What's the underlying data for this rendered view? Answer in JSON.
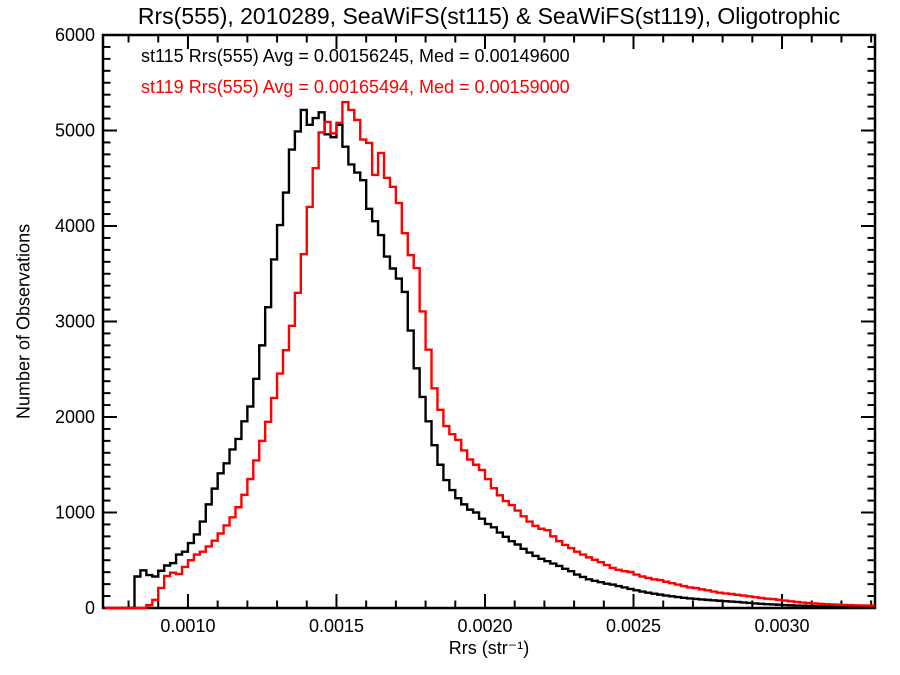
{
  "title": "Rrs(555), 2010289, SeaWiFS(st115) & SeaWiFS(st119), Oligotrophic",
  "colors": {
    "background": "#ffffff",
    "axis": "#000000",
    "st115": "#000000",
    "st119": "#ff0000"
  },
  "chart_data": {
    "type": "histogram",
    "title": "Rrs(555), 2010289, SeaWiFS(st115) & SeaWiFS(st119), Oligotrophic",
    "xlabel": "Rrs (str⁻¹)",
    "ylabel": "Number of Observations",
    "xlim": [
      0.000714,
      0.003313
    ],
    "ylim": [
      0,
      6000
    ],
    "grid": false,
    "legend_position": "top-left-inside",
    "x_major_ticks": [
      0.001,
      0.0015,
      0.002,
      0.0025,
      0.003
    ],
    "x_tick_labels": [
      "0.0010",
      "0.0015",
      "0.0020",
      "0.0025",
      "0.0030"
    ],
    "x_minor_step": 0.0001,
    "y_major_ticks": [
      0,
      1000,
      2000,
      3000,
      4000,
      5000,
      6000
    ],
    "y_tick_labels": [
      "0",
      "1000",
      "2000",
      "3000",
      "4000",
      "5000",
      "6000"
    ],
    "y_minor_step": 125,
    "bin_start": 0.00072,
    "bin_width": 2e-05,
    "series": [
      {
        "name": "st115",
        "sensor": "SeaWiFS",
        "color": "#000000",
        "avg": 0.00156245,
        "med": 0.001496,
        "stats_label": "st115 Rrs(555) Avg = 0.00156245, Med = 0.00149600",
        "counts": [
          0,
          0,
          0,
          0,
          0,
          330,
          395,
          345,
          330,
          390,
          445,
          470,
          560,
          590,
          680,
          770,
          905,
          1085,
          1250,
          1410,
          1515,
          1660,
          1770,
          1955,
          2110,
          2400,
          2750,
          3150,
          3650,
          4010,
          4350,
          4800,
          4990,
          5215,
          5060,
          5130,
          5190,
          4960,
          4930,
          5060,
          4830,
          4645,
          4560,
          4480,
          4180,
          4050,
          3905,
          3680,
          3555,
          3450,
          3310,
          2905,
          2510,
          2210,
          1955,
          1705,
          1500,
          1340,
          1235,
          1150,
          1085,
          1030,
          1000,
          935,
          880,
          845,
          790,
          745,
          700,
          665,
          620,
          580,
          545,
          515,
          490,
          465,
          440,
          410,
          385,
          350,
          325,
          300,
          285,
          270,
          255,
          245,
          230,
          215,
          200,
          185,
          172,
          160,
          150,
          140,
          130,
          122,
          114,
          107,
          100,
          95,
          90,
          85,
          80,
          76,
          71,
          67,
          63,
          58,
          53,
          48,
          44,
          40,
          37,
          34,
          31,
          28,
          26,
          24,
          22,
          20,
          18,
          16,
          15,
          13,
          12,
          11,
          10,
          9,
          8,
          8
        ]
      },
      {
        "name": "st119",
        "sensor": "SeaWiFS",
        "color": "#ff0000",
        "avg": 0.00165494,
        "med": 0.00159,
        "stats_label": "st119 Rrs(555) Avg = 0.00165494, Med = 0.00159000",
        "counts": [
          0,
          0,
          0,
          0,
          0,
          0,
          0,
          30,
          85,
          210,
          335,
          370,
          355,
          430,
          500,
          560,
          590,
          645,
          705,
          780,
          865,
          950,
          1055,
          1185,
          1350,
          1545,
          1750,
          1950,
          2200,
          2455,
          2700,
          2955,
          3300,
          3705,
          4200,
          4605,
          4980,
          5090,
          4970,
          5080,
          5298,
          5215,
          5110,
          4905,
          4870,
          4535,
          4765,
          4505,
          4410,
          4240,
          3925,
          3695,
          3560,
          3105,
          2705,
          2300,
          2075,
          1905,
          1820,
          1760,
          1650,
          1555,
          1500,
          1445,
          1350,
          1255,
          1180,
          1120,
          1078,
          1020,
          960,
          905,
          860,
          830,
          815,
          750,
          700,
          660,
          628,
          590,
          560,
          530,
          505,
          480,
          450,
          420,
          400,
          385,
          377,
          350,
          330,
          315,
          300,
          293,
          275,
          260,
          245,
          230,
          215,
          209,
          195,
          185,
          172,
          160,
          152,
          147,
          138,
          130,
          122,
          113,
          105,
          98,
          94,
          86,
          78,
          70,
          63,
          57,
          52,
          48,
          44,
          40,
          37,
          34,
          32,
          30,
          28,
          27,
          26,
          25
        ]
      }
    ]
  }
}
